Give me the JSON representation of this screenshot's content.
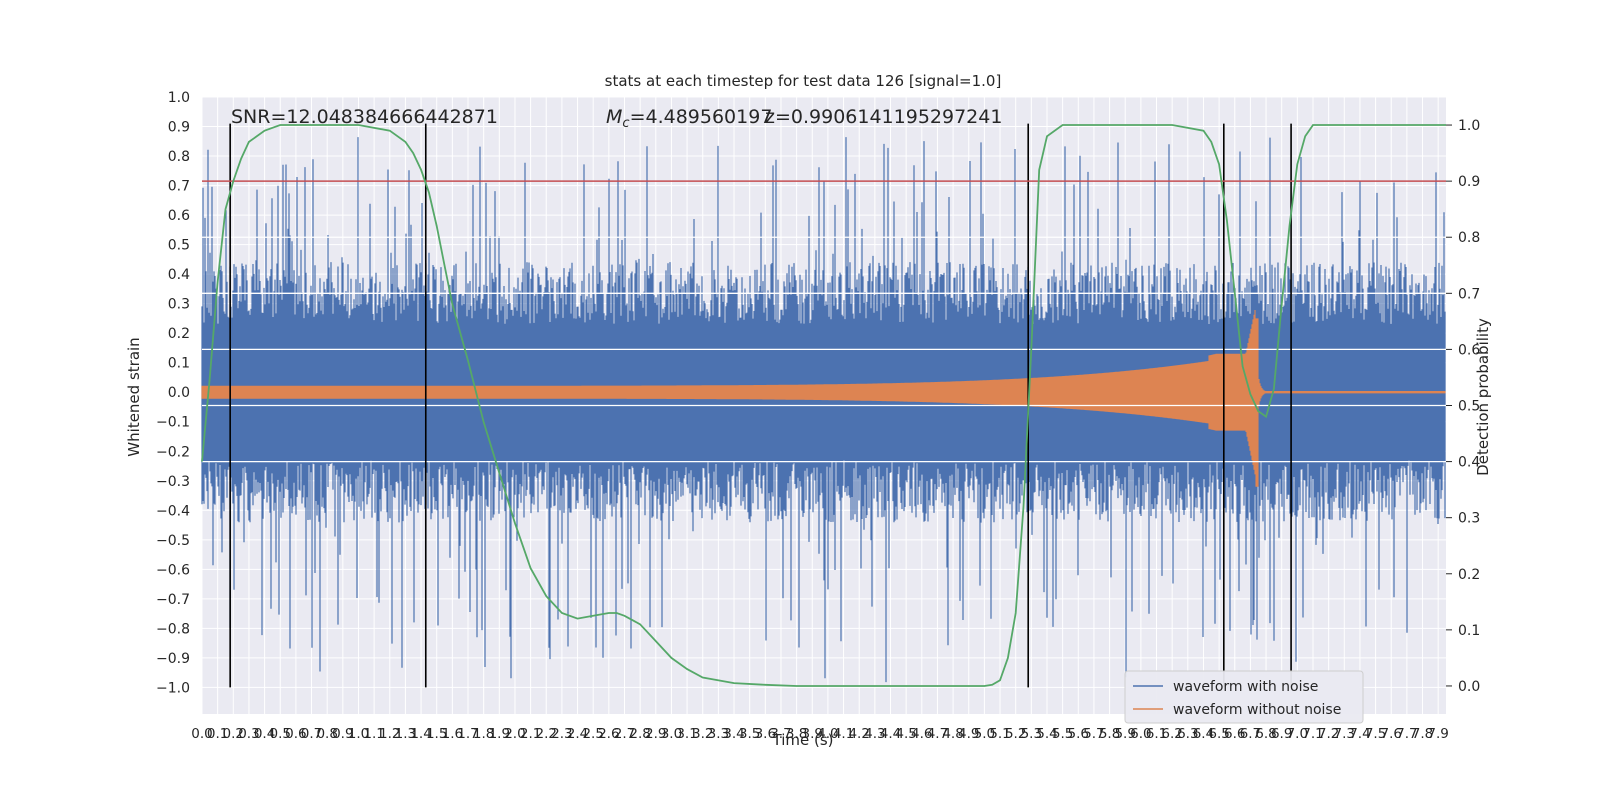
{
  "chart_data": {
    "type": "line",
    "title": "stats at each timestep for test data 126 [signal=1.0]",
    "xlabel": "Time (s)",
    "ylabel": "Whitened strain",
    "y2label": "Detection probability",
    "xlim": [
      0.0,
      7.95
    ],
    "ylim": [
      -1.09,
      1.0
    ],
    "y2lim": [
      -0.05,
      1.05
    ],
    "grid": true,
    "legend_position": "lower-right",
    "x_tick_labels": [
      "0.0",
      "0.1",
      "0.2",
      "0.3",
      "0.4",
      "0.5",
      "0.6",
      "0.7",
      "0.8",
      "0.9",
      "1.0",
      "1.1",
      "1.2",
      "1.3",
      "1.4",
      "1.5",
      "1.6",
      "1.7",
      "1.8",
      "1.9",
      "2.0",
      "2.1",
      "2.2",
      "2.3",
      "2.4",
      "2.5",
      "2.6",
      "2.7",
      "2.8",
      "2.9",
      "3.0",
      "3.1",
      "3.2",
      "3.3",
      "3.4",
      "3.5",
      "3.6",
      "3.7",
      "3.8",
      "3.9",
      "4.0",
      "4.1",
      "4.2",
      "4.3",
      "4.4",
      "4.5",
      "4.6",
      "4.7",
      "4.8",
      "4.9",
      "5.0",
      "5.1",
      "5.2",
      "5.3",
      "5.4",
      "5.5",
      "5.6",
      "5.7",
      "5.8",
      "5.9",
      "6.0",
      "6.1",
      "6.2",
      "6.3",
      "6.4",
      "6.5",
      "6.6",
      "6.7",
      "6.8",
      "6.9",
      "7.0",
      "7.1",
      "7.2",
      "7.3",
      "7.4",
      "7.5",
      "7.6",
      "7.7",
      "7.8",
      "7.9"
    ],
    "y_tick_labels": [
      "1.0",
      "0.9",
      "0.8",
      "0.7",
      "0.6",
      "0.5",
      "0.4",
      "0.3",
      "0.2",
      "0.1",
      "0.0",
      "−0.1",
      "−0.2",
      "−0.3",
      "−0.4",
      "−0.5",
      "−0.6",
      "−0.7",
      "−0.8",
      "−0.9",
      "−1.0"
    ],
    "y2_tick_labels": [
      "1.0",
      "0.9",
      "0.8",
      "0.7",
      "0.6",
      "0.5",
      "0.4",
      "0.3",
      "0.2",
      "0.1",
      "0.0"
    ],
    "annotations": [
      {
        "text": "SNR=12.048384666442871",
        "x": 0.2,
        "y": 0.93
      },
      {
        "text": "Mc=4.48956019705990614119529724 1",
        "x": 2.6,
        "y": 0.93
      }
    ],
    "annotation_mc_prefix": "M",
    "annotation_mc_sub": "c",
    "annotation_mc_rest": "=4.489560197",
    "annotation_mc_overlap": "z=0.9906141195297241",
    "threshold_line": {
      "y2": 0.9,
      "color": "#c44e52"
    },
    "vertical_lines_x": [
      0.18,
      1.43,
      5.28,
      6.53,
      6.96
    ],
    "white_lines_y2": [
      0.8,
      0.7,
      0.6,
      0.5,
      0.4
    ],
    "series": [
      {
        "name": "waveform with noise",
        "color": "#4c72b0",
        "amplitude_typical": 0.42,
        "amplitude_peak": 1.0
      },
      {
        "name": "waveform without noise",
        "color": "#dd8452",
        "merger_time": 6.73,
        "peak": 0.25,
        "trough": -0.32
      },
      {
        "name": "",
        "color": "#55a868",
        "x": [
          0.0,
          0.05,
          0.1,
          0.15,
          0.2,
          0.25,
          0.3,
          0.4,
          0.5,
          0.6,
          0.8,
          1.0,
          1.2,
          1.3,
          1.35,
          1.4,
          1.45,
          1.5,
          1.55,
          1.6,
          1.7,
          1.8,
          1.9,
          2.0,
          2.1,
          2.2,
          2.3,
          2.4,
          2.5,
          2.6,
          2.65,
          2.7,
          2.8,
          2.9,
          3.0,
          3.1,
          3.2,
          3.4,
          3.6,
          3.8,
          4.0,
          4.5,
          5.0,
          5.05,
          5.1,
          5.15,
          5.2,
          5.25,
          5.3,
          5.35,
          5.4,
          5.5,
          5.6,
          5.8,
          6.0,
          6.2,
          6.4,
          6.45,
          6.5,
          6.55,
          6.6,
          6.65,
          6.7,
          6.75,
          6.8,
          6.85,
          6.9,
          6.95,
          7.0,
          7.05,
          7.1,
          7.2,
          7.3,
          7.5,
          7.95
        ],
        "values": [
          0.4,
          0.55,
          0.72,
          0.85,
          0.9,
          0.94,
          0.97,
          0.99,
          1.0,
          1.0,
          1.0,
          1.0,
          0.99,
          0.97,
          0.95,
          0.92,
          0.88,
          0.82,
          0.75,
          0.68,
          0.58,
          0.47,
          0.38,
          0.29,
          0.21,
          0.16,
          0.13,
          0.12,
          0.125,
          0.13,
          0.13,
          0.125,
          0.11,
          0.08,
          0.05,
          0.03,
          0.015,
          0.005,
          0.002,
          0.0,
          0.0,
          0.0,
          0.0,
          0.002,
          0.01,
          0.05,
          0.13,
          0.32,
          0.6,
          0.92,
          0.98,
          1.0,
          1.0,
          1.0,
          1.0,
          1.0,
          0.99,
          0.97,
          0.93,
          0.83,
          0.7,
          0.57,
          0.52,
          0.49,
          0.48,
          0.53,
          0.68,
          0.82,
          0.93,
          0.98,
          1.0,
          1.0,
          1.0,
          1.0,
          1.0
        ]
      }
    ]
  }
}
